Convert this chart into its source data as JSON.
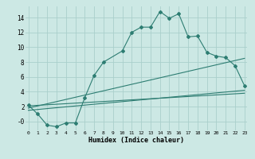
{
  "title": "",
  "xlabel": "Humidex (Indice chaleur)",
  "bg_color": "#cce8e4",
  "grid_color": "#aacfcb",
  "line_color": "#2d7d72",
  "series_main": {
    "x": [
      0,
      1,
      2,
      3,
      4,
      5,
      6,
      7,
      8,
      10,
      11,
      12,
      13,
      14,
      15,
      16,
      17,
      18,
      19,
      20,
      21,
      22,
      23
    ],
    "y": [
      2.2,
      1.0,
      -0.5,
      -0.7,
      -0.2,
      -0.2,
      3.2,
      6.2,
      8.0,
      9.5,
      12.0,
      12.7,
      12.7,
      14.8,
      13.9,
      14.5,
      11.4,
      11.5,
      9.3,
      8.8,
      8.6,
      7.5,
      4.8
    ]
  },
  "series_lines": [
    {
      "x": [
        0,
        23
      ],
      "y": [
        2.1,
        3.8
      ]
    },
    {
      "x": [
        0,
        23
      ],
      "y": [
        1.8,
        8.5
      ]
    },
    {
      "x": [
        0,
        23
      ],
      "y": [
        1.5,
        4.2
      ]
    }
  ],
  "xlim": [
    -0.3,
    23.3
  ],
  "ylim": [
    -1.2,
    15.5
  ],
  "yticks": [
    0,
    2,
    4,
    6,
    8,
    10,
    12,
    14
  ],
  "ytick_labels": [
    "-0",
    "2",
    "4",
    "6",
    "8",
    "10",
    "12",
    "14"
  ],
  "xticks": [
    0,
    1,
    2,
    3,
    4,
    5,
    6,
    7,
    8,
    9,
    10,
    11,
    12,
    13,
    14,
    15,
    16,
    17,
    18,
    19,
    20,
    21,
    22,
    23
  ],
  "xtick_labels": [
    "0",
    "1",
    "2",
    "3",
    "4",
    "5",
    "6",
    "7",
    "8",
    "9",
    "10",
    "11",
    "12",
    "13",
    "14",
    "15",
    "16",
    "17",
    "18",
    "19",
    "20",
    "21",
    "22",
    "23"
  ]
}
